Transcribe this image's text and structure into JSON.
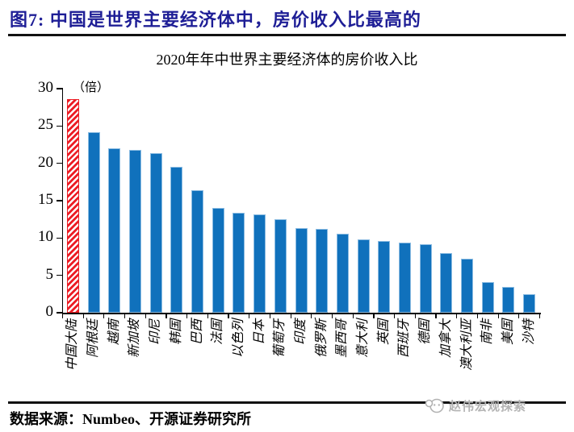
{
  "page": {
    "figure_title": "图7: 中国是世界主要经济体中，房价收入比最高的",
    "source": "数据来源：Numbeo、开源证券研究所",
    "watermark": "赵伟宏观探索"
  },
  "chart_data": {
    "type": "bar",
    "title": "2020年年中世界主要经济体的房价收入比",
    "unit_label": "（倍）",
    "ylim": [
      0,
      30
    ],
    "yticks": [
      0,
      5,
      10,
      15,
      20,
      25,
      30
    ],
    "grid": false,
    "legend": null,
    "categories": [
      "中国大陆",
      "阿根廷",
      "越南",
      "新加坡",
      "印尼",
      "韩国",
      "巴西",
      "法国",
      "以色列",
      "日本",
      "葡萄牙",
      "印度",
      "俄罗斯",
      "墨西哥",
      "意大利",
      "英国",
      "西班牙",
      "德国",
      "加拿大",
      "澳大利亚",
      "南非",
      "美国",
      "沙特"
    ],
    "values": [
      28.6,
      24.2,
      22.0,
      21.8,
      21.4,
      19.5,
      16.4,
      14.0,
      13.4,
      13.2,
      12.5,
      11.3,
      11.2,
      10.6,
      9.8,
      9.6,
      9.4,
      9.2,
      8.0,
      7.2,
      4.1,
      3.5,
      2.5
    ],
    "highlight_index": 0,
    "highlight_category": "中国大陆",
    "colors": {
      "bar": "#1071BC",
      "bar_edge": "#8BBCE2",
      "highlight": "#EC1C24",
      "highlight_pattern": "white-diagonal-stripes",
      "title_navy": "#1E1E96",
      "axis": "#000000",
      "watermark_gray": "#B3B3B3"
    }
  }
}
